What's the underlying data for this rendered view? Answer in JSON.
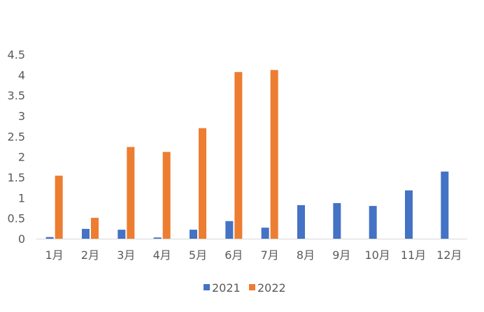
{
  "chart_data": {
    "type": "bar",
    "categories": [
      "1月",
      "2月",
      "3月",
      "4月",
      "5月",
      "6月",
      "7月",
      "8月",
      "9月",
      "10月",
      "11月",
      "12月"
    ],
    "series": [
      {
        "name": "2021",
        "color": "#4472C4",
        "values": [
          0.04,
          0.24,
          0.22,
          0.03,
          0.22,
          0.43,
          0.27,
          0.82,
          0.87,
          0.8,
          1.18,
          1.64
        ]
      },
      {
        "name": "2022",
        "color": "#ED7D31",
        "values": [
          1.54,
          0.51,
          2.24,
          2.12,
          2.7,
          4.07,
          4.12,
          null,
          null,
          null,
          null,
          null
        ]
      }
    ],
    "y_ticks": [
      "0",
      "0.5",
      "1",
      "1.5",
      "2",
      "2.5",
      "3",
      "3.5",
      "4",
      "4.5"
    ],
    "ylim": [
      0,
      4.5
    ],
    "grid": false,
    "legend_position": "bottom",
    "axis_color": "#D9D9D9"
  }
}
